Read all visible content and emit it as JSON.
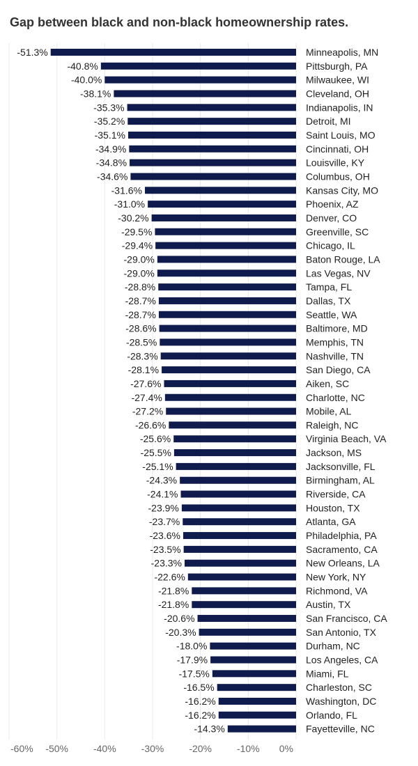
{
  "title": "Gap between black and non-black homeownership rates.",
  "chart_data": {
    "type": "bar",
    "orientation": "horizontal",
    "title": "Gap between black and non-black homeownership rates.",
    "xlabel": "",
    "ylabel": "",
    "xlim": [
      -60,
      0
    ],
    "xticks": [
      -60,
      -50,
      -40,
      -30,
      -20,
      -10,
      0
    ],
    "xtick_labels": [
      "-60%",
      "-50%",
      "-40%",
      "-30%",
      "-20%",
      "-10%",
      "0%"
    ],
    "grid": true,
    "bar_color": "#0f1b4d",
    "categories": [
      "Minneapolis, MN",
      "Pittsburgh, PA",
      "Milwaukee, WI",
      "Cleveland, OH",
      "Indianapolis, IN",
      "Detroit, MI",
      "Saint Louis, MO",
      "Cincinnati, OH",
      "Louisville, KY",
      "Columbus, OH",
      "Kansas City, MO",
      "Phoenix, AZ",
      "Denver, CO",
      "Greenville, SC",
      "Chicago, IL",
      "Baton Rouge, LA",
      "Las Vegas, NV",
      "Tampa, FL",
      "Dallas, TX",
      "Seattle, WA",
      "Baltimore, MD",
      "Memphis, TN",
      "Nashville, TN",
      "San Diego, CA",
      "Aiken, SC",
      "Charlotte, NC",
      "Mobile, AL",
      "Raleigh, NC",
      "Virginia Beach, VA",
      "Jackson, MS",
      "Jacksonville, FL",
      "Birmingham, AL",
      "Riverside, CA",
      "Houston, TX",
      "Atlanta, GA",
      "Philadelphia, PA",
      "Sacramento, CA",
      "New Orleans, LA",
      "New York, NY",
      "Richmond, VA",
      "Austin, TX",
      "San Francisco, CA",
      "San Antonio, TX",
      "Durham, NC",
      "Los Angeles, CA",
      "Miami, FL",
      "Charleston, SC",
      "Washington, DC",
      "Orlando, FL",
      "Fayetteville, NC"
    ],
    "values": [
      -51.3,
      -40.8,
      -40.0,
      -38.1,
      -35.3,
      -35.2,
      -35.1,
      -34.9,
      -34.8,
      -34.6,
      -31.6,
      -31.0,
      -30.2,
      -29.5,
      -29.4,
      -29.0,
      -29.0,
      -28.8,
      -28.7,
      -28.7,
      -28.6,
      -28.5,
      -28.3,
      -28.1,
      -27.6,
      -27.4,
      -27.2,
      -26.6,
      -25.6,
      -25.5,
      -25.1,
      -24.3,
      -24.1,
      -23.9,
      -23.7,
      -23.6,
      -23.5,
      -23.3,
      -22.6,
      -21.8,
      -21.8,
      -20.6,
      -20.3,
      -18.0,
      -17.9,
      -17.5,
      -16.5,
      -16.2,
      -16.2,
      -14.3
    ],
    "value_labels": [
      "-51.3%",
      "-40.8%",
      "-40.0%",
      "-38.1%",
      "-35.3%",
      "-35.2%",
      "-35.1%",
      "-34.9%",
      "-34.8%",
      "-34.6%",
      "-31.6%",
      "-31.0%",
      "-30.2%",
      "-29.5%",
      "-29.4%",
      "-29.0%",
      "-29.0%",
      "-28.8%",
      "-28.7%",
      "-28.7%",
      "-28.6%",
      "-28.5%",
      "-28.3%",
      "-28.1%",
      "-27.6%",
      "-27.4%",
      "-27.2%",
      "-26.6%",
      "-25.6%",
      "-25.5%",
      "-25.1%",
      "-24.3%",
      "-24.1%",
      "-23.9%",
      "-23.7%",
      "-23.6%",
      "-23.5%",
      "-23.3%",
      "-22.6%",
      "-21.8%",
      "-21.8%",
      "-20.6%",
      "-20.3%",
      "-18.0%",
      "-17.9%",
      "-17.5%",
      "-16.5%",
      "-16.2%",
      "-16.2%",
      "-14.3%"
    ]
  }
}
